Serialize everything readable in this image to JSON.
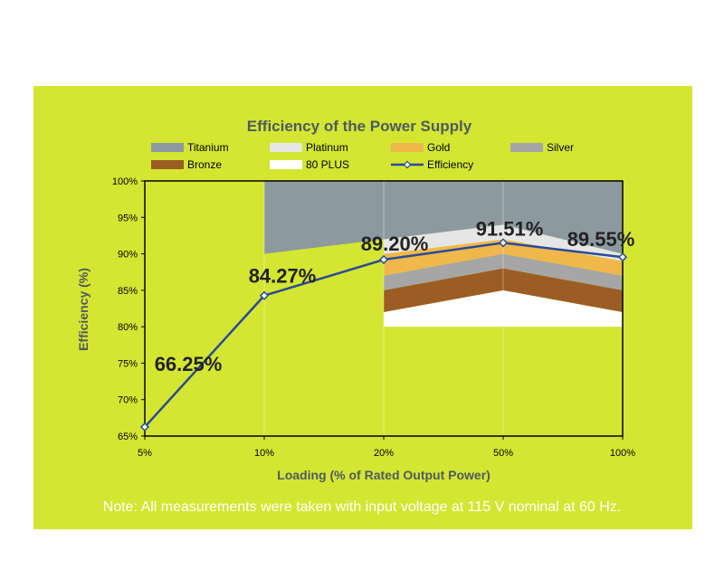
{
  "chart_data": {
    "type": "line",
    "title": "Efficiency of the Power Supply",
    "xlabel": "Loading (% of Rated Output Power)",
    "ylabel": "Efficiency (%)",
    "categories": [
      "5%",
      "10%",
      "20%",
      "50%",
      "100%"
    ],
    "y_ticks": [
      "65%",
      "70%",
      "75%",
      "80%",
      "85%",
      "90%",
      "95%",
      "100%"
    ],
    "ylim": [
      65,
      100
    ],
    "series": [
      {
        "name": "Efficiency",
        "values": [
          66.25,
          84.27,
          89.2,
          91.51,
          89.55
        ],
        "color": "#2a4a9a"
      }
    ],
    "data_labels": [
      "66.25%",
      "84.27%",
      "89.20%",
      "91.51%",
      "89.55%"
    ],
    "bands": [
      {
        "name": "80 PLUS",
        "color": "#ffffff",
        "categories": [
          "20%",
          "50%",
          "100%"
        ],
        "upper": [
          82,
          85,
          82
        ],
        "lower": [
          80,
          80,
          80
        ]
      },
      {
        "name": "Bronze",
        "color": "#9c5d24",
        "categories": [
          "20%",
          "50%",
          "100%"
        ],
        "upper": [
          85,
          88,
          85
        ],
        "lower": [
          82,
          85,
          82
        ]
      },
      {
        "name": "Silver",
        "color": "#a6a6a6",
        "categories": [
          "20%",
          "50%",
          "100%"
        ],
        "upper": [
          87,
          90,
          87
        ],
        "lower": [
          85,
          88,
          85
        ]
      },
      {
        "name": "Gold",
        "color": "#f0b84a",
        "categories": [
          "20%",
          "50%",
          "100%"
        ],
        "upper": [
          90,
          92,
          89
        ],
        "lower": [
          87,
          90,
          87
        ]
      },
      {
        "name": "Platinum",
        "color": "#e6e6e6",
        "categories": [
          "20%",
          "50%",
          "100%"
        ],
        "upper": [
          92,
          94,
          90
        ],
        "lower": [
          90,
          92,
          89
        ]
      },
      {
        "name": "Titanium",
        "color": "#8c9aa0",
        "categories": [
          "10%",
          "20%",
          "50%",
          "100%"
        ],
        "upper": [
          100,
          100,
          100,
          100
        ],
        "lower": [
          90,
          92,
          94,
          90
        ]
      }
    ],
    "legend": [
      {
        "name": "Titanium",
        "color": "#8c9aa0",
        "kind": "swatch"
      },
      {
        "name": "Platinum",
        "color": "#e6e6e6",
        "kind": "swatch"
      },
      {
        "name": "Gold",
        "color": "#f0b84a",
        "kind": "swatch"
      },
      {
        "name": "Silver",
        "color": "#a6a6a6",
        "kind": "swatch"
      },
      {
        "name": "Bronze",
        "color": "#9c5d24",
        "kind": "swatch"
      },
      {
        "name": "80 PLUS",
        "color": "#ffffff",
        "kind": "swatch"
      },
      {
        "name": "Efficiency",
        "color": "#2a4a9a",
        "kind": "line"
      }
    ],
    "legend_position": "top",
    "grid": "vertical"
  },
  "note": "Note: All measurements were taken with input voltage at 115 V nominal at 60 Hz."
}
